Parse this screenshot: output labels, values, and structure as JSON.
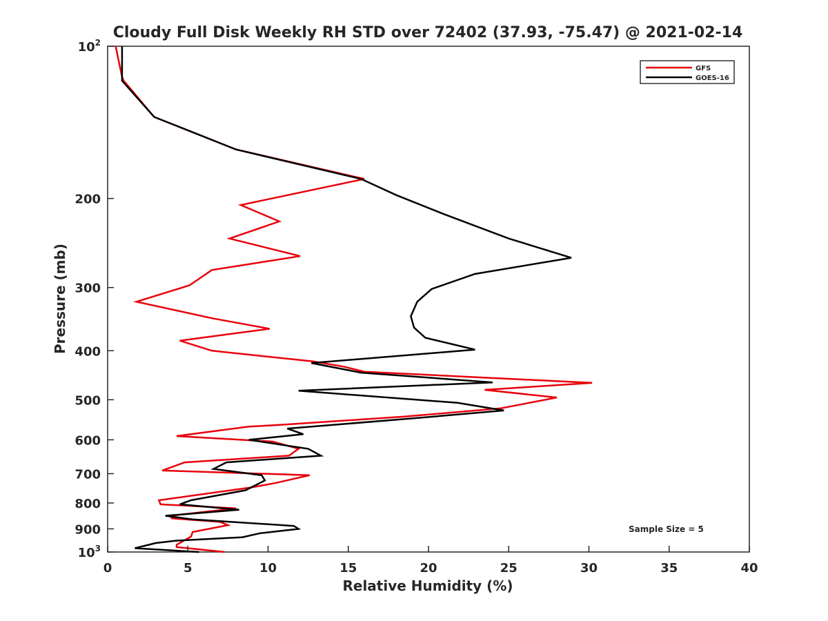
{
  "chart_data": {
    "type": "line",
    "title": "Cloudy Full Disk Weekly RH STD over 72402 (37.93, -75.47) @ 2021-02-14",
    "xlabel": "Relative Humidity (%)",
    "ylabel": "Pressure (mb)",
    "xlim": [
      0,
      40
    ],
    "ylim": [
      100,
      1000
    ],
    "y_scale": "log",
    "y_reversed": true,
    "grid": false,
    "legend_position": "top-right",
    "x_ticks": [
      0,
      5,
      10,
      15,
      20,
      25,
      30,
      35,
      40
    ],
    "x_tick_labels": [
      "0",
      "5",
      "10",
      "15",
      "20",
      "25",
      "30",
      "35",
      "40"
    ],
    "y_ticks": [
      100,
      200,
      300,
      400,
      500,
      600,
      700,
      800,
      900,
      1000
    ],
    "y_tick_labels": [
      {
        "base": "10",
        "exp": "2"
      },
      {
        "base": "200"
      },
      {
        "base": "300"
      },
      {
        "base": "400"
      },
      {
        "base": "500"
      },
      {
        "base": "600"
      },
      {
        "base": "700"
      },
      {
        "base": "800"
      },
      {
        "base": "900"
      },
      {
        "base": "10",
        "exp": "3"
      }
    ],
    "annotation": "Sample Size = 5",
    "series": [
      {
        "name": "GFS",
        "color": "#e8000b",
        "points": [
          [
            0.5,
            100
          ],
          [
            0.9,
            115
          ],
          [
            1.0,
            117
          ],
          [
            2.9,
            138
          ],
          [
            8.0,
            160
          ],
          [
            16.0,
            183
          ],
          [
            8.3,
            206
          ],
          [
            10.7,
            222
          ],
          [
            7.6,
            240
          ],
          [
            12.0,
            260
          ],
          [
            6.5,
            277
          ],
          [
            5.1,
            297
          ],
          [
            1.8,
            320
          ],
          [
            6.5,
            345
          ],
          [
            10.1,
            362
          ],
          [
            4.5,
            382
          ],
          [
            6.5,
            400
          ],
          [
            12.8,
            420
          ],
          [
            14.7,
            430
          ],
          [
            16.0,
            440
          ],
          [
            30.2,
            463
          ],
          [
            23.5,
            478
          ],
          [
            28.0,
            495
          ],
          [
            24.5,
            520
          ],
          [
            18.5,
            540
          ],
          [
            11.0,
            560
          ],
          [
            8.8,
            565
          ],
          [
            4.3,
            590
          ],
          [
            10.3,
            605
          ],
          [
            11.9,
            625
          ],
          [
            11.3,
            645
          ],
          [
            4.8,
            665
          ],
          [
            3.4,
            690
          ],
          [
            12.6,
            705
          ],
          [
            10.5,
            730
          ],
          [
            9.0,
            745
          ],
          [
            3.2,
            790
          ],
          [
            3.3,
            805
          ],
          [
            8.0,
            820
          ],
          [
            3.9,
            848
          ],
          [
            4.0,
            858
          ],
          [
            7.0,
            872
          ],
          [
            7.5,
            885
          ],
          [
            5.3,
            913
          ],
          [
            5.2,
            932
          ],
          [
            4.3,
            968
          ],
          [
            4.3,
            978
          ],
          [
            7.3,
            1000
          ]
        ]
      },
      {
        "name": "GOES-16",
        "color": "#000000",
        "points": [
          [
            0.9,
            100
          ],
          [
            0.9,
            117
          ],
          [
            2.9,
            138
          ],
          [
            8.0,
            160
          ],
          [
            15.8,
            183
          ],
          [
            18.0,
            197
          ],
          [
            21.0,
            215
          ],
          [
            25.0,
            240
          ],
          [
            28.9,
            262
          ],
          [
            22.9,
            282
          ],
          [
            20.2,
            302
          ],
          [
            19.3,
            320
          ],
          [
            18.9,
            342
          ],
          [
            19.1,
            360
          ],
          [
            19.8,
            377
          ],
          [
            22.9,
            398
          ],
          [
            12.7,
            423
          ],
          [
            15.8,
            442
          ],
          [
            24.0,
            462
          ],
          [
            11.9,
            480
          ],
          [
            21.8,
            507
          ],
          [
            24.7,
            525
          ],
          [
            18.8,
            545
          ],
          [
            11.2,
            570
          ],
          [
            12.2,
            585
          ],
          [
            8.8,
            600
          ],
          [
            12.5,
            625
          ],
          [
            13.3,
            645
          ],
          [
            7.4,
            665
          ],
          [
            6.6,
            685
          ],
          [
            9.6,
            705
          ],
          [
            9.8,
            722
          ],
          [
            8.6,
            755
          ],
          [
            5.2,
            790
          ],
          [
            4.5,
            805
          ],
          [
            8.2,
            825
          ],
          [
            3.6,
            848
          ],
          [
            5.3,
            862
          ],
          [
            11.6,
            888
          ],
          [
            11.9,
            900
          ],
          [
            9.5,
            918
          ],
          [
            8.4,
            935
          ],
          [
            4.2,
            950
          ],
          [
            3.0,
            960
          ],
          [
            1.7,
            983
          ],
          [
            5.7,
            1000
          ]
        ]
      }
    ]
  }
}
